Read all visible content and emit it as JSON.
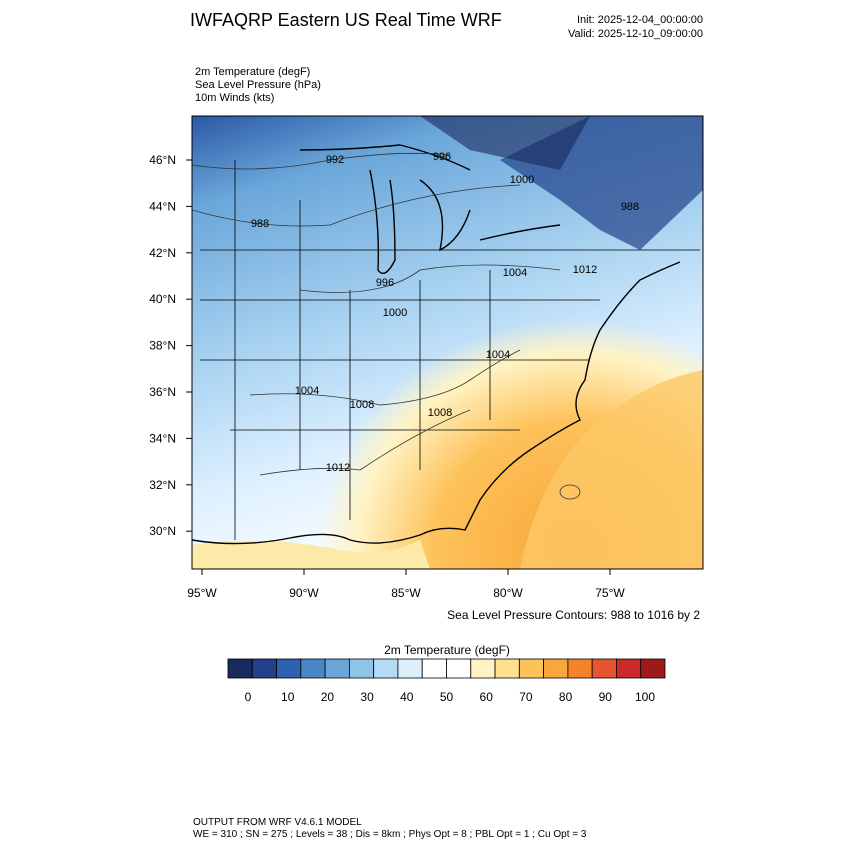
{
  "header": {
    "title": "IWFAQRP Eastern US Real Time WRF",
    "init": "Init: 2025-12-04_00:00:00",
    "valid": "Valid: 2025-12-10_09:00:00"
  },
  "fields": [
    "2m Temperature   (degF)",
    "Sea Level Pressure   (hPa)",
    "10m Winds   (kts)"
  ],
  "map": {
    "lat_labels": [
      "46°N",
      "44°N",
      "42°N",
      "40°N",
      "38°N",
      "36°N",
      "34°N",
      "32°N",
      "30°N"
    ],
    "lon_labels": [
      "95°W",
      "90°W",
      "85°W",
      "80°W",
      "75°W"
    ],
    "contour_labels": [
      "992",
      "996",
      "1000",
      "988",
      "996",
      "1000",
      "1004",
      "1004",
      "1008",
      "1008",
      "1004",
      "1012",
      "1012",
      "988"
    ]
  },
  "contour_note": "Sea Level Pressure Contours: 988 to 1016 by 2",
  "colorbar": {
    "title": "2m Temperature  (degF)",
    "tick_labels": [
      "0",
      "10",
      "20",
      "30",
      "40",
      "50",
      "60",
      "70",
      "80",
      "90",
      "100"
    ],
    "colors": [
      "#1b2a5e",
      "#22418a",
      "#2e62b0",
      "#4a86c8",
      "#6aa6da",
      "#8ec4ea",
      "#b3dbf5",
      "#dceffb",
      "#ffffff",
      "#ffffff",
      "#fff3c4",
      "#ffe08e",
      "#fdc25a",
      "#f9a63a",
      "#f5832e",
      "#e85430",
      "#cc2a2a",
      "#9e1a1a"
    ]
  },
  "footer": {
    "line1": "OUTPUT FROM WRF V4.6.1 MODEL",
    "line2": "WE = 310 ; SN = 275 ; Levels = 38 ; Dis = 8km ; Phys Opt = 8 ; PBL Opt = 1 ; Cu Opt = 3"
  }
}
